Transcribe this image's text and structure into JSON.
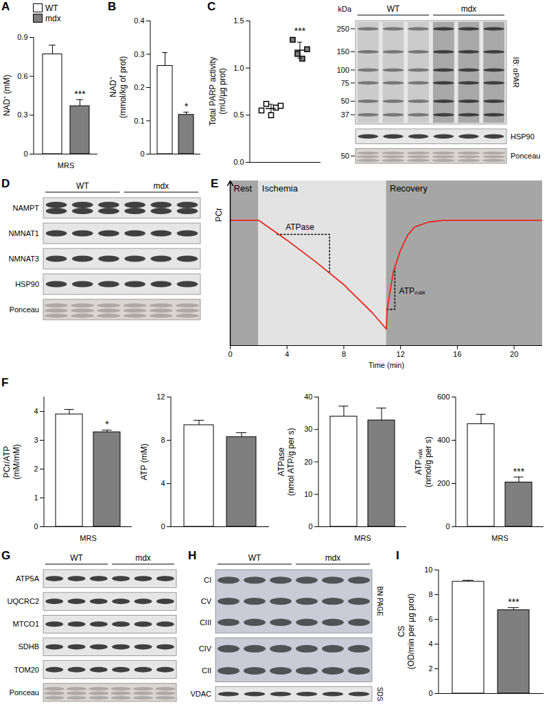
{
  "chart_data": [
    {
      "panel": "A",
      "type": "bar",
      "ylabel": "NAD⁺ (mM)",
      "categories": [
        "MRS"
      ],
      "series": [
        {
          "name": "WT",
          "color": "#ffffff",
          "values": [
            0.77
          ],
          "errors": [
            0.07
          ]
        },
        {
          "name": "mdx",
          "color": "#7f7f7f",
          "values": [
            0.37
          ],
          "errors": [
            0.05
          ],
          "significance": "***"
        }
      ],
      "ylim": [
        0,
        0.9
      ],
      "yticks": [
        0,
        0.3,
        0.6,
        0.9
      ],
      "legend": "top-left"
    },
    {
      "panel": "B",
      "type": "bar",
      "ylabel": "NAD⁺\n(mmol/kg of prot)",
      "categories": [
        null
      ],
      "series": [
        {
          "name": "WT",
          "color": "#ffffff",
          "values": [
            0.265
          ],
          "errors": [
            0.04
          ]
        },
        {
          "name": "mdx",
          "color": "#7f7f7f",
          "values": [
            0.118
          ],
          "errors": [
            0.008
          ],
          "significance": "*"
        }
      ],
      "ylim": [
        0,
        0.4
      ],
      "yticks": [
        0,
        0.1,
        0.2,
        0.3,
        0.4
      ]
    },
    {
      "panel": "C",
      "type": "scatter",
      "ylabel": "Total PARP activity\n(mU/µg prot)",
      "series": [
        {
          "name": "WT",
          "color": "#ffffff",
          "marker": "square",
          "values": [
            0.55,
            0.62,
            0.5,
            0.58,
            0.6
          ],
          "mean": 0.57,
          "error": 0.045
        },
        {
          "name": "mdx",
          "color": "#7f7f7f",
          "marker": "square",
          "values": [
            1.3,
            1.15,
            1.1,
            1.2
          ],
          "mean": 1.19,
          "error": 0.085,
          "significance": "***"
        }
      ],
      "ylim": [
        0,
        1.5
      ],
      "yticks": [
        {
          "value": 0,
          "label": "0.0"
        },
        0.5,
        {
          "value": 1,
          "label": "1.0"
        },
        1.5
      ],
      "tick_labels": "y"
    },
    {
      "panel": "E",
      "type": "line",
      "xlabel": "Time (min)",
      "ylabel": "PCr",
      "x": [
        0,
        2,
        4,
        6,
        8,
        10,
        11,
        11.05,
        11.5,
        12,
        12.5,
        13,
        14,
        15,
        22
      ],
      "values": [
        0.76,
        0.76,
        0.64,
        0.51,
        0.37,
        0.2,
        0.1,
        0.22,
        0.45,
        0.58,
        0.67,
        0.72,
        0.75,
        0.76,
        0.76
      ],
      "color": "#e8251f",
      "xlim": [
        0,
        22
      ],
      "xticks": [
        0,
        4,
        8,
        12,
        16,
        20
      ],
      "ylim": [
        0,
        1
      ],
      "tick_labels": "x",
      "regions": [
        {
          "label": "Rest",
          "from": 0,
          "to": 2,
          "color": "#a6a6a6"
        },
        {
          "label": "Ischemia",
          "from": 2,
          "to": 11,
          "color": "#e3e3e3"
        },
        {
          "label": "Recovery",
          "from": 11,
          "to": 22,
          "color": "#a6a6a6"
        }
      ],
      "annotations": [
        {
          "text": "ATPase",
          "x": 3.9,
          "y": 0.72,
          "path": [
            [
              3.3,
              0.675
            ],
            [
              7,
              0.675
            ],
            [
              7,
              0.44
            ]
          ]
        },
        {
          "text": "ATPₘₐₓ",
          "x": 11.9,
          "y": 0.33,
          "path": [
            [
              11.05,
              0.22
            ],
            [
              11.6,
              0.22
            ],
            [
              11.6,
              0.47
            ]
          ]
        }
      ]
    },
    {
      "panel": "F",
      "type": "bar",
      "ylabel": "PCr/ATP\n(mM/mM)",
      "categories": [
        "MRS"
      ],
      "series": [
        {
          "name": "WT",
          "color": "#ffffff",
          "values": [
            3.9
          ],
          "errors": [
            0.17
          ]
        },
        {
          "name": "mdx",
          "color": "#7f7f7f",
          "values": [
            3.28
          ],
          "errors": [
            0.07
          ],
          "significance": "*"
        }
      ],
      "ylim": [
        0,
        4.5
      ],
      "yticks": [
        0,
        1,
        2,
        3,
        4
      ]
    },
    {
      "type": "bar",
      "ylabel": "ATP (mM)",
      "categories": [
        null
      ],
      "series": [
        {
          "name": "WT",
          "color": "#ffffff",
          "values": [
            9.4
          ],
          "errors": [
            0.45
          ]
        },
        {
          "name": "mdx",
          "color": "#7f7f7f",
          "values": [
            8.3
          ],
          "errors": [
            0.4
          ]
        }
      ],
      "ylim": [
        0,
        12
      ],
      "yticks": [
        0,
        4,
        8,
        12
      ]
    },
    {
      "type": "bar",
      "ylabel": "ATPase\n(nmol ATP/g per s)",
      "categories": [
        "MRS"
      ],
      "series": [
        {
          "name": "WT",
          "color": "#ffffff",
          "values": [
            34
          ],
          "errors": [
            3.2
          ]
        },
        {
          "name": "mdx",
          "color": "#7f7f7f",
          "values": [
            32.8
          ],
          "errors": [
            3.8
          ]
        }
      ],
      "ylim": [
        0,
        40
      ],
      "yticks": [
        0,
        10,
        20,
        30,
        40
      ]
    },
    {
      "type": "bar",
      "ylabel": "ATPₘₐₓ\n(nmol/g per s)",
      "categories": [
        "MRS"
      ],
      "series": [
        {
          "name": "WT",
          "color": "#ffffff",
          "values": [
            475
          ],
          "errors": [
            45
          ]
        },
        {
          "name": "mdx",
          "color": "#7f7f7f",
          "values": [
            205
          ],
          "errors": [
            25
          ],
          "significance": "***"
        }
      ],
      "ylim": [
        0,
        600
      ],
      "yticks": [
        0,
        200,
        400,
        600
      ]
    },
    {
      "panel": "I",
      "type": "bar",
      "ylabel": "CS\n(OD/min per µg prot)",
      "categories": [
        null
      ],
      "series": [
        {
          "name": "WT",
          "color": "#ffffff",
          "values": [
            9.05
          ],
          "errors": [
            0.12
          ]
        },
        {
          "name": "mdx",
          "color": "#7f7f7f",
          "values": [
            6.75
          ],
          "errors": [
            0.2
          ],
          "significance": "***"
        }
      ],
      "ylim": [
        0,
        10
      ],
      "yticks": [
        0,
        2,
        4,
        6,
        8,
        10
      ]
    }
  ],
  "blots": [
    {
      "groups": [
        {
          "label": "WT",
          "lanes": 3
        },
        {
          "label": "mdx",
          "lanes": 3
        }
      ],
      "label_side": "right",
      "marker_title": "kDa",
      "rows": [
        {
          "label": "IB: αPAR",
          "style": "smear",
          "markers": [
            250,
            150,
            100,
            75,
            50,
            37
          ]
        },
        {
          "label": "HSP90",
          "style": "single"
        },
        {
          "label": "Ponceau",
          "style": "light",
          "markers": [
            50
          ]
        }
      ]
    },
    {
      "panel": "D",
      "groups": [
        {
          "label": "WT",
          "lanes": 3
        },
        {
          "label": "mdx",
          "lanes": 3
        }
      ],
      "label_side": "left",
      "rows": [
        {
          "label": "NAMPT",
          "style": "double"
        },
        {
          "label": "NMNAT1",
          "style": "single"
        },
        {
          "label": "NMNAT3",
          "style": "single"
        },
        {
          "label": "HSP90",
          "style": "single"
        },
        {
          "label": "Ponceau",
          "style": "light"
        }
      ]
    },
    {
      "panel": "G",
      "groups": [
        {
          "label": "WT",
          "lanes": 3
        },
        {
          "label": "mdx",
          "lanes": 3
        }
      ],
      "label_side": "left",
      "rows": [
        {
          "label": "ATP5A",
          "style": "single"
        },
        {
          "label": "UQCRC2",
          "style": "single"
        },
        {
          "label": "MTCO1",
          "style": "single"
        },
        {
          "label": "SDHB",
          "style": "single"
        },
        {
          "label": "TOM20",
          "style": "single"
        },
        {
          "label": "Ponceau",
          "style": "light"
        }
      ]
    },
    {
      "panel": "H",
      "groups": [
        {
          "label": "WT",
          "lanes": 3
        },
        {
          "label": "mdx",
          "lanes": 3
        }
      ],
      "label_side": "left",
      "rows": [
        {
          "style": "gel",
          "bands": [
            "CI",
            "CV",
            "CIII"
          ],
          "note": "BN PAGE"
        },
        {
          "style": "gel",
          "bands": [
            "CIV",
            "CII"
          ]
        },
        {
          "label": "VDAC",
          "style": "single",
          "note": "SDS"
        }
      ]
    }
  ]
}
